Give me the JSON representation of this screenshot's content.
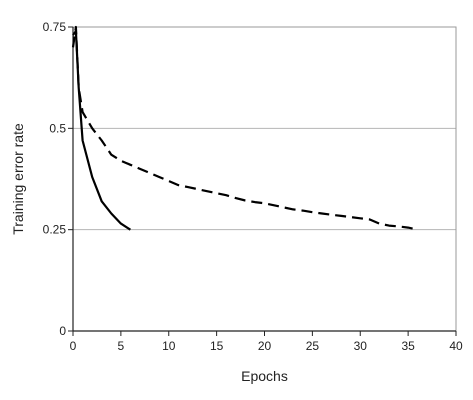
{
  "chart_data": {
    "type": "line",
    "title": "",
    "xlabel": "Epochs",
    "ylabel": "Training error rate",
    "xlim": [
      0,
      40
    ],
    "ylim": [
      0,
      0.75
    ],
    "x_ticks": [
      "0",
      "5",
      "10",
      "15",
      "20",
      "25",
      "30",
      "35",
      "40"
    ],
    "y_ticks": [
      "0",
      "0.25",
      "0.5",
      "0.75"
    ],
    "x_tick_values": [
      0,
      5,
      10,
      15,
      20,
      25,
      30,
      35,
      40
    ],
    "y_tick_values": [
      0,
      0.25,
      0.5,
      0.75
    ],
    "grid": "horizontal",
    "legend": "none",
    "series": [
      {
        "style": "solid",
        "color": "#000000",
        "x": [
          0,
          0.3,
          0.6,
          1,
          2,
          3,
          4,
          5,
          6
        ],
        "y": [
          0.73,
          0.74,
          0.6,
          0.47,
          0.38,
          0.32,
          0.29,
          0.265,
          0.25
        ]
      },
      {
        "style": "dashed",
        "color": "#000000",
        "x": [
          0,
          0.3,
          0.6,
          1,
          2,
          3,
          4,
          5,
          6,
          7,
          8,
          9,
          10,
          11,
          12,
          13,
          14,
          15,
          16,
          17,
          18,
          19,
          20,
          21,
          22,
          23,
          24,
          25,
          26,
          27,
          28,
          29,
          30,
          31,
          32,
          33,
          34,
          35,
          36
        ],
        "y": [
          0.7,
          0.75,
          0.6,
          0.54,
          0.5,
          0.47,
          0.435,
          0.42,
          0.41,
          0.4,
          0.39,
          0.38,
          0.37,
          0.36,
          0.355,
          0.35,
          0.345,
          0.34,
          0.335,
          0.328,
          0.322,
          0.318,
          0.315,
          0.31,
          0.305,
          0.3,
          0.297,
          0.293,
          0.29,
          0.287,
          0.284,
          0.281,
          0.278,
          0.275,
          0.265,
          0.26,
          0.258,
          0.255,
          0.25
        ]
      }
    ]
  }
}
